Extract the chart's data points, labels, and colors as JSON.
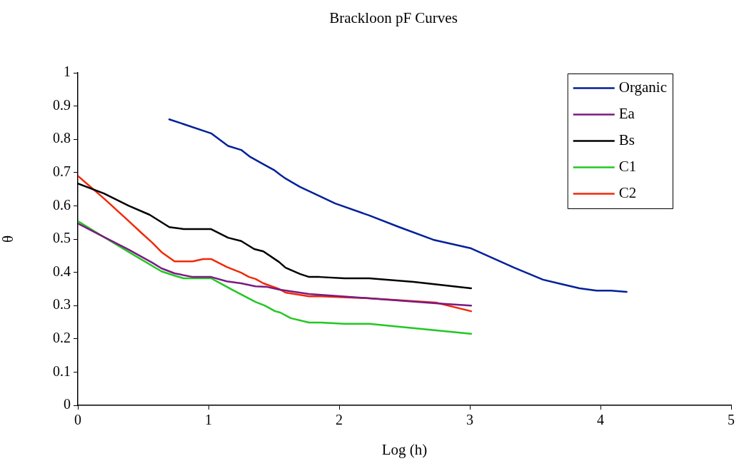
{
  "chart_data": {
    "type": "line",
    "title": "Brackloon pF Curves",
    "xlabel": "Log (h)",
    "ylabel": "θ",
    "xlim": [
      0,
      5
    ],
    "xticks": [
      0,
      1,
      2,
      3,
      4,
      5
    ],
    "ylim": [
      0,
      1
    ],
    "yticks": [
      0,
      0.1,
      0.2,
      0.3,
      0.4,
      0.5,
      0.6,
      0.7,
      0.8,
      0.9,
      1
    ],
    "grid": false,
    "legend": "top right",
    "marker": "none",
    "line_style": "solid",
    "series": [
      {
        "name": "Organic",
        "color": "#00209a",
        "x": [
          0.7,
          1.02,
          1.15,
          1.25,
          1.32,
          1.42,
          1.5,
          1.55,
          1.59,
          1.7,
          1.77,
          1.97,
          2.23,
          2.46,
          2.72,
          3.01,
          3.34,
          3.56,
          3.7,
          3.84,
          3.97,
          4.08,
          4.2
        ],
        "values": [
          0.86,
          0.818,
          0.78,
          0.768,
          0.747,
          0.725,
          0.708,
          0.693,
          0.682,
          0.657,
          0.644,
          0.607,
          0.571,
          0.536,
          0.498,
          0.472,
          0.414,
          0.378,
          0.365,
          0.352,
          0.345,
          0.345,
          0.341
        ]
      },
      {
        "name": "Ea",
        "color": "#7b1a82",
        "x": [
          0,
          0.2,
          0.39,
          0.57,
          0.64,
          0.74,
          0.88,
          1.02,
          1.14,
          1.25,
          1.36,
          1.45,
          1.54,
          1.77,
          2.23,
          2.74,
          3.01
        ],
        "values": [
          0.547,
          0.506,
          0.468,
          0.429,
          0.412,
          0.397,
          0.386,
          0.386,
          0.373,
          0.367,
          0.358,
          0.356,
          0.348,
          0.335,
          0.322,
          0.307,
          0.3
        ]
      },
      {
        "name": "Bs",
        "color": "#000000",
        "x": [
          0,
          0.2,
          0.39,
          0.55,
          0.7,
          0.81,
          1.02,
          1.15,
          1.25,
          1.35,
          1.42,
          1.54,
          1.59,
          1.7,
          1.77,
          1.85,
          2.04,
          2.23,
          2.57,
          3.01
        ],
        "values": [
          0.667,
          0.637,
          0.6,
          0.573,
          0.536,
          0.53,
          0.53,
          0.504,
          0.494,
          0.47,
          0.463,
          0.431,
          0.414,
          0.395,
          0.386,
          0.386,
          0.382,
          0.382,
          0.371,
          0.352
        ]
      },
      {
        "name": "C1",
        "color": "#22c722",
        "x": [
          0,
          0.2,
          0.39,
          0.64,
          0.74,
          0.81,
          1.02,
          1.1,
          1.18,
          1.36,
          1.43,
          1.51,
          1.55,
          1.63,
          1.77,
          1.86,
          2.04,
          2.23,
          3.01
        ],
        "values": [
          0.554,
          0.506,
          0.461,
          0.403,
          0.39,
          0.382,
          0.382,
          0.365,
          0.348,
          0.311,
          0.3,
          0.283,
          0.279,
          0.262,
          0.249,
          0.249,
          0.245,
          0.245,
          0.215
        ]
      },
      {
        "name": "C2",
        "color": "#f02a08",
        "x": [
          0,
          0.2,
          0.39,
          0.48,
          0.57,
          0.64,
          0.74,
          0.88,
          0.96,
          1.02,
          1.14,
          1.25,
          1.31,
          1.36,
          1.42,
          1.54,
          1.59,
          1.77,
          1.86,
          2.23,
          2.74,
          3.01
        ],
        "values": [
          0.69,
          0.622,
          0.554,
          0.521,
          0.489,
          0.461,
          0.433,
          0.433,
          0.44,
          0.44,
          0.416,
          0.399,
          0.386,
          0.38,
          0.367,
          0.35,
          0.339,
          0.328,
          0.328,
          0.322,
          0.309,
          0.283
        ]
      }
    ]
  }
}
